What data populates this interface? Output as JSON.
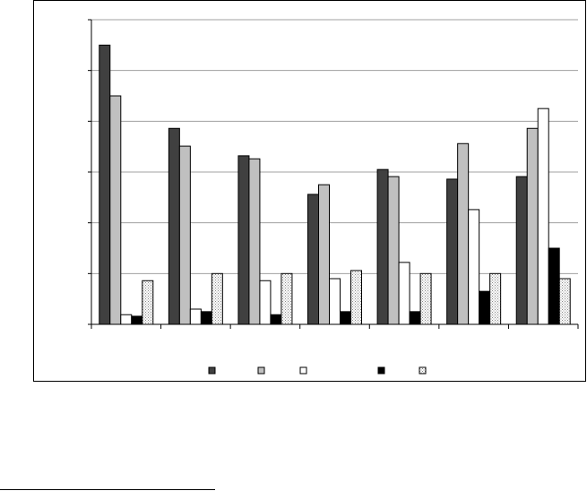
{
  "chart_data": {
    "type": "bar",
    "title": "",
    "xlabel": "",
    "ylabel": "",
    "ylim": [
      0,
      6
    ],
    "grid": true,
    "legend": "bottom",
    "categories": [
      "",
      "",
      "",
      "",
      "",
      "",
      ""
    ],
    "series": [
      {
        "values": [
          5.5,
          3.86,
          3.32,
          2.56,
          3.05,
          2.86,
          2.91
        ],
        "color": "#404040",
        "pattern": "solid"
      },
      {
        "values": [
          4.5,
          3.51,
          3.26,
          2.75,
          2.91,
          3.56,
          3.86
        ],
        "color": "#c0c0c0",
        "pattern": "solid"
      },
      {
        "values": [
          0.19,
          0.3,
          0.86,
          0.9,
          1.22,
          2.26,
          4.25
        ],
        "color": "#ffffff",
        "pattern": "solid"
      },
      {
        "values": [
          0.16,
          0.25,
          0.19,
          0.25,
          0.25,
          0.65,
          1.5
        ],
        "color": "#000000",
        "pattern": "solid"
      },
      {
        "values": [
          0.86,
          1.0,
          1.0,
          1.06,
          1.0,
          1.0,
          0.9
        ],
        "color": "#e8e8e8",
        "pattern": "dotted"
      }
    ]
  }
}
